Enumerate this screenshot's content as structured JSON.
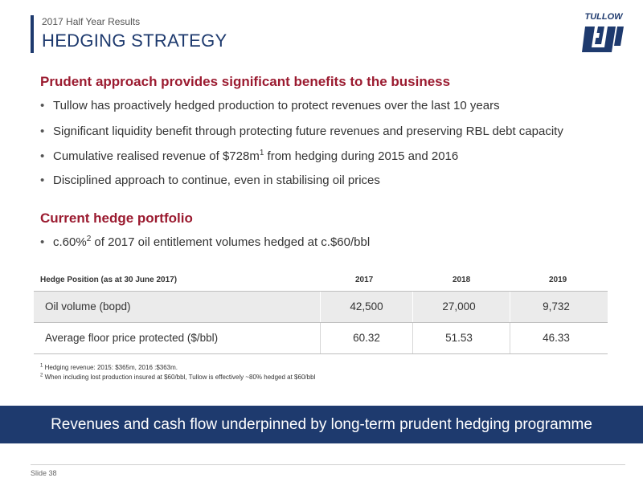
{
  "header": {
    "eyebrow": "2017 Half Year Results",
    "title": "HEDGING STRATEGY",
    "logo_text": "TULLOW"
  },
  "section1": {
    "heading": "Prudent approach provides significant benefits to the business",
    "bullets": [
      {
        "text": "Tullow has proactively hedged production to protect revenues over the last 10 years"
      },
      {
        "text": "Significant liquidity benefit through protecting future revenues and preserving RBL debt capacity"
      },
      {
        "text_before": "Cumulative realised revenue of $728m",
        "sup": "1",
        "text_after": " from hedging during 2015 and 2016"
      },
      {
        "text": "Disciplined approach to continue, even in stabilising oil prices"
      }
    ]
  },
  "section2": {
    "heading": "Current hedge portfolio",
    "bullet": {
      "text_before": "c.60%",
      "sup": "2",
      "text_after": " of 2017 oil entitlement volumes hedged at c.$60/bbl"
    }
  },
  "table": {
    "header": [
      "Hedge Position (as at 30 June 2017)",
      "2017",
      "2018",
      "2019"
    ],
    "rows": [
      {
        "label": "Oil volume (bopd)",
        "values": [
          "42,500",
          "27,000",
          "9,732"
        ]
      },
      {
        "label": "Average floor price protected ($/bbl)",
        "values": [
          "60.32",
          "51.53",
          "46.33"
        ]
      }
    ]
  },
  "footnotes": [
    {
      "sup": "1",
      "text": " Hedging revenue: 2015: $365m, 2016 :$363m."
    },
    {
      "sup": "2",
      "text": " When including lost production insured at $60/bbl, Tullow is effectively ~80% hedged at $60/bbl"
    }
  ],
  "banner": {
    "text": "Revenues and cash flow underpinned by long-term prudent hedging programme"
  },
  "footer": {
    "slide": "Slide 38"
  },
  "colors": {
    "navy": "#1e3a6e",
    "maroon": "#9b1b30",
    "row_shade": "#ebebeb"
  }
}
